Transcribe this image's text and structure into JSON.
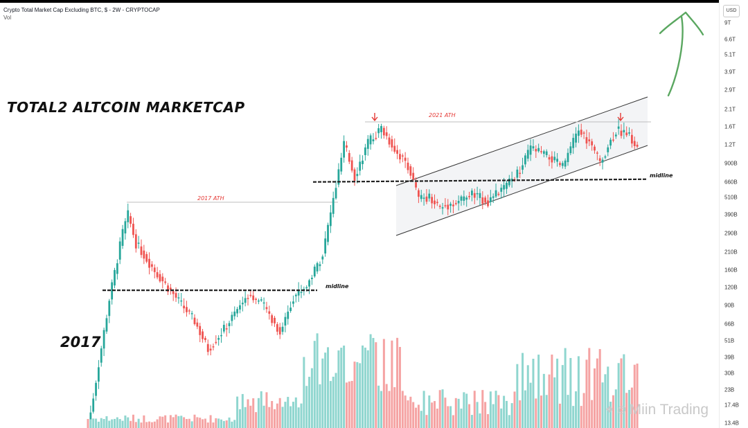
{
  "header": {
    "title": "Crypto Total Market Cap Excluding BTC, $ - 2W - CRYPTOCAP",
    "volume_label": "Vol"
  },
  "annotations": {
    "main_title": "TOTAL2 ALTCOIN MARKETCAP",
    "year_label": "2017",
    "ath_2017": "2017 ATH",
    "ath_2021": "2021 ATH",
    "midline_left": "midline",
    "midline_right": "midline"
  },
  "axis": {
    "currency": "USD",
    "ticks": [
      "9T",
      "6.6T",
      "5.1T",
      "3.9T",
      "2.9T",
      "2.1T",
      "1.6T",
      "1.2T",
      "900B",
      "660B",
      "510B",
      "390B",
      "290B",
      "210B",
      "160B",
      "120B",
      "90B",
      "66B",
      "51B",
      "39B",
      "30B",
      "23B",
      "17.4B",
      "13.4B"
    ]
  },
  "watermark": "Miin Trading",
  "colors": {
    "up": "#26a69a",
    "down": "#ef5350",
    "volume_up": "#8fd6cf",
    "volume_down": "#f5a3a3",
    "channel_fill": "#f3f4f6",
    "arrow_green": "#5aa760",
    "ath_red": "#e53935"
  },
  "chart_data": {
    "type": "candlestick",
    "title": "Crypto Total Market Cap Excluding BTC, $ - 2W - CRYPTOCAP",
    "scale": "log",
    "y_unit": "USD",
    "price_path": [
      {
        "t": 0,
        "v": 12
      },
      {
        "t": 8,
        "v": 100
      },
      {
        "t": 13,
        "v": 300
      },
      {
        "t": 15,
        "v": 400
      },
      {
        "t": 18,
        "v": 250
      },
      {
        "t": 25,
        "v": 160
      },
      {
        "t": 35,
        "v": 92
      },
      {
        "t": 40,
        "v": 70
      },
      {
        "t": 45,
        "v": 44
      },
      {
        "t": 52,
        "v": 65
      },
      {
        "t": 60,
        "v": 110
      },
      {
        "t": 66,
        "v": 90
      },
      {
        "t": 72,
        "v": 58
      },
      {
        "t": 77,
        "v": 105
      },
      {
        "t": 82,
        "v": 125
      },
      {
        "t": 88,
        "v": 210
      },
      {
        "t": 94,
        "v": 800
      },
      {
        "t": 96,
        "v": 1270
      },
      {
        "t": 100,
        "v": 750
      },
      {
        "t": 105,
        "v": 1300
      },
      {
        "t": 110,
        "v": 1650
      },
      {
        "t": 116,
        "v": 1100
      },
      {
        "t": 120,
        "v": 900
      },
      {
        "t": 124,
        "v": 520
      },
      {
        "t": 128,
        "v": 540
      },
      {
        "t": 132,
        "v": 450
      },
      {
        "t": 138,
        "v": 490
      },
      {
        "t": 144,
        "v": 560
      },
      {
        "t": 150,
        "v": 500
      },
      {
        "t": 156,
        "v": 620
      },
      {
        "t": 162,
        "v": 820
      },
      {
        "t": 166,
        "v": 1200
      },
      {
        "t": 172,
        "v": 1050
      },
      {
        "t": 178,
        "v": 880
      },
      {
        "t": 184,
        "v": 1600
      },
      {
        "t": 188,
        "v": 1300
      },
      {
        "t": 192,
        "v": 950
      },
      {
        "t": 198,
        "v": 1600
      },
      {
        "t": 202,
        "v": 1550
      },
      {
        "t": 206,
        "v": 1180
      }
    ],
    "levels": {
      "ath_2017": 440,
      "ath_2021": 1750,
      "midline_2017_cycle": 116,
      "midline_2021_cycle": 700
    },
    "volume": "relative bars beneath candles; peaks around the 2021 run-up and late cycle"
  }
}
